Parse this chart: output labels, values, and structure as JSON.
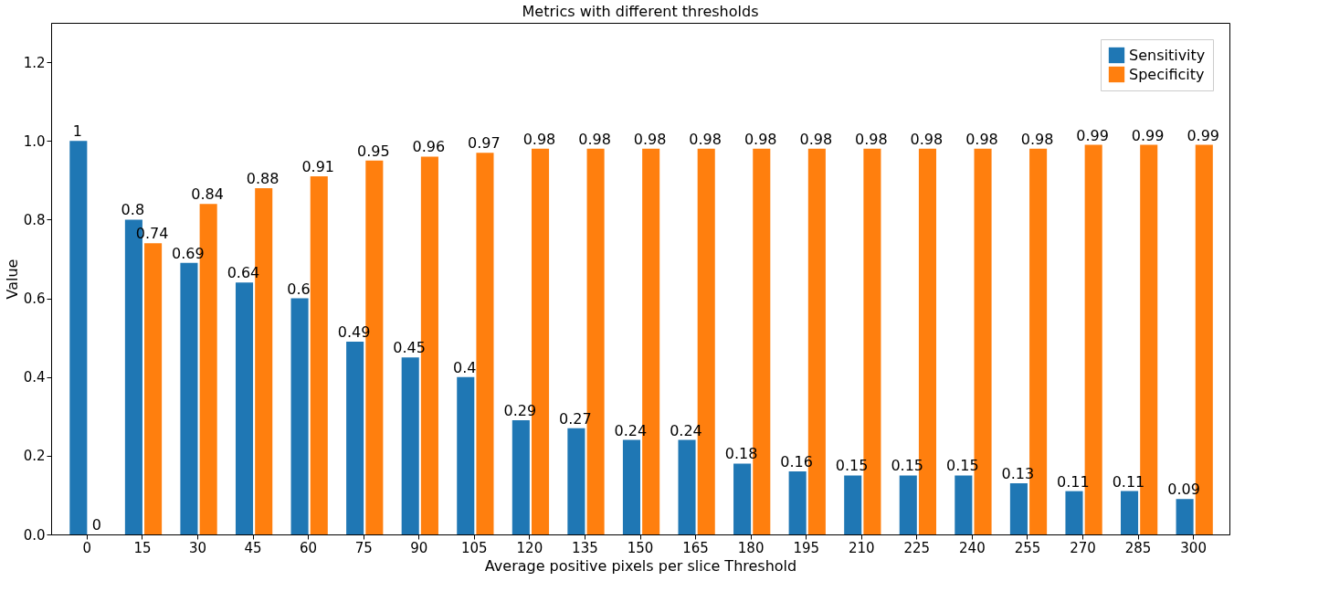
{
  "chart_data": {
    "type": "bar",
    "title": "Metrics with different thresholds",
    "xlabel": "Average positive pixels per slice Threshold",
    "ylabel": "Value",
    "categories": [
      "0",
      "15",
      "30",
      "45",
      "60",
      "75",
      "90",
      "105",
      "120",
      "135",
      "150",
      "165",
      "180",
      "195",
      "210",
      "225",
      "240",
      "255",
      "270",
      "285",
      "300"
    ],
    "series": [
      {
        "name": "Sensitivity",
        "color": "#1f77b4",
        "values": [
          1,
          0.8,
          0.69,
          0.64,
          0.6,
          0.49,
          0.45,
          0.4,
          0.29,
          0.27,
          0.24,
          0.24,
          0.18,
          0.16,
          0.15,
          0.15,
          0.15,
          0.13,
          0.11,
          0.11,
          0.09
        ]
      },
      {
        "name": "Specificity",
        "color": "#ff7f0e",
        "values": [
          0,
          0.74,
          0.84,
          0.88,
          0.91,
          0.95,
          0.96,
          0.97,
          0.98,
          0.98,
          0.98,
          0.98,
          0.98,
          0.98,
          0.98,
          0.98,
          0.98,
          0.98,
          0.99,
          0.99,
          0.99
        ]
      }
    ],
    "ylim": [
      0,
      1.3
    ],
    "yticks": [
      {
        "value": 0,
        "label": "0.0"
      },
      {
        "value": 0.2,
        "label": "0.2"
      },
      {
        "value": 0.4,
        "label": "0.4"
      },
      {
        "value": 0.6,
        "label": "0.6"
      },
      {
        "value": 0.8,
        "label": "0.8"
      },
      {
        "value": 1,
        "label": "1.0"
      },
      {
        "value": 1.2,
        "label": "1.2"
      }
    ],
    "data_labels": true,
    "legend": "top right",
    "grid": false
  }
}
